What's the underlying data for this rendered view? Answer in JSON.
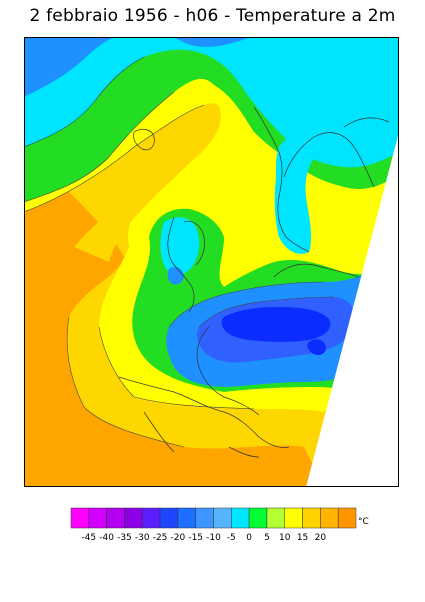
{
  "title": "2 febbraio 1956 - h06 - Temperature a 2m",
  "legend": {
    "unit": "°C",
    "colors": [
      "#ff00ff",
      "#d300ff",
      "#b400f0",
      "#8c00e6",
      "#5a1eff",
      "#1e46ff",
      "#1e6eff",
      "#3c96ff",
      "#56b4ff",
      "#00e6ff",
      "#00ff32",
      "#b4ff32",
      "#ffff00",
      "#ffd200",
      "#ffb400",
      "#ff9600"
    ],
    "tick_labels": [
      "-45",
      "-40",
      "-35",
      "-30",
      "-25",
      "-20",
      "-15",
      "-10",
      "-5",
      "0",
      "5",
      "10",
      "15",
      "20"
    ]
  },
  "map_colors": {
    "sea_warm": "#ffa500",
    "mild": "#ffd700",
    "zero_band": "#ffff00",
    "cold_minus5": "#00dd00",
    "cold_minus10": "#00e5ff",
    "cold_minus15": "#1e90ff",
    "cold_minus20": "#3060ff",
    "cold_minus25": "#0a2cff",
    "no_data": "#ffffff",
    "coastline": "#333333"
  }
}
